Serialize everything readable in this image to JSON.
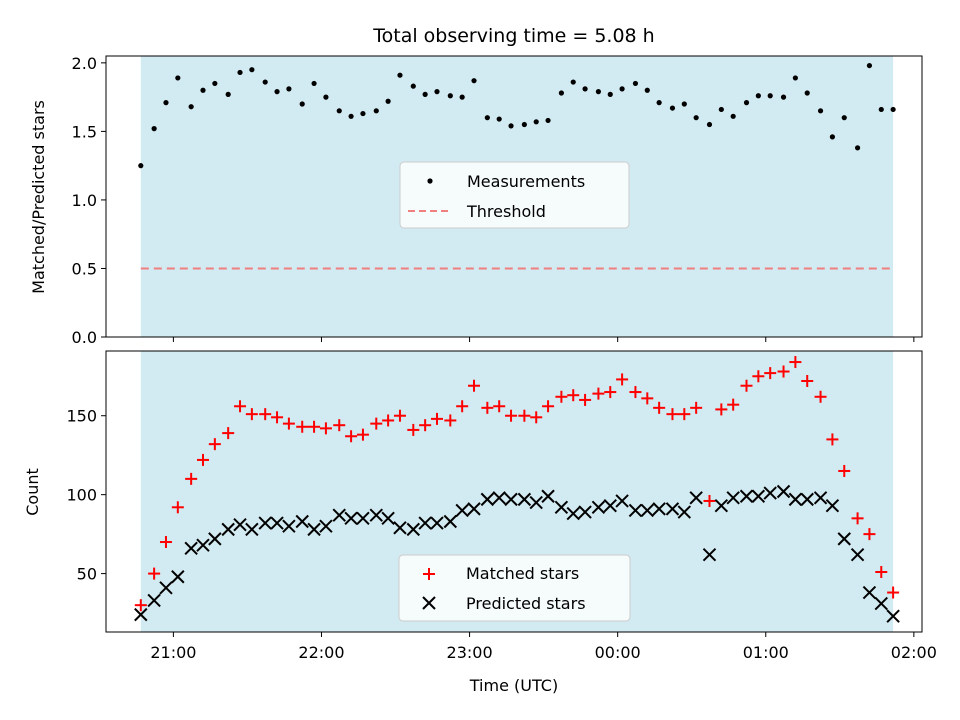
{
  "chart_data": [
    {
      "type": "scatter",
      "title": "Total observing time = 5.08 h",
      "xlabel": "",
      "ylabel": "Matched/Predicted stars",
      "xlim": [
        20.545,
        26.055
      ],
      "ylim": [
        0,
        2.05
      ],
      "yticks": [
        0.0,
        0.5,
        1.0,
        1.5,
        2.0
      ],
      "ytick_labels": [
        "0.0",
        "0.5",
        "1.0",
        "1.5",
        "2.0"
      ],
      "observing_span": [
        20.78,
        25.86
      ],
      "observing_color": "#add8e6",
      "legend": {
        "placement": "center",
        "entries": [
          "Measurements",
          "Threshold"
        ]
      },
      "threshold": {
        "name": "Threshold",
        "y": 0.5,
        "color": "#f08080",
        "style": "dashed"
      },
      "series": [
        {
          "name": "Measurements",
          "marker": "dot",
          "color": "#000000",
          "x": [
            20.78,
            20.87,
            20.95,
            21.03,
            21.12,
            21.2,
            21.28,
            21.37,
            21.45,
            21.53,
            21.62,
            21.7,
            21.78,
            21.87,
            21.95,
            22.03,
            22.12,
            22.2,
            22.28,
            22.37,
            22.45,
            22.53,
            22.62,
            22.7,
            22.78,
            22.87,
            22.95,
            23.03,
            23.12,
            23.2,
            23.28,
            23.37,
            23.45,
            23.53,
            23.62,
            23.7,
            23.78,
            23.87,
            23.95,
            24.03,
            24.12,
            24.2,
            24.28,
            24.37,
            24.45,
            24.53,
            24.62,
            24.7,
            24.78,
            24.87,
            24.95,
            25.03,
            25.12,
            25.2,
            25.28,
            25.37,
            25.45,
            25.53,
            25.62,
            25.7,
            25.78,
            25.86
          ],
          "y": [
            1.25,
            1.52,
            1.71,
            1.89,
            1.68,
            1.8,
            1.85,
            1.77,
            1.93,
            1.95,
            1.86,
            1.79,
            1.81,
            1.7,
            1.85,
            1.75,
            1.65,
            1.61,
            1.63,
            1.65,
            1.72,
            1.91,
            1.83,
            1.77,
            1.79,
            1.76,
            1.75,
            1.87,
            1.6,
            1.59,
            1.54,
            1.55,
            1.57,
            1.58,
            1.78,
            1.86,
            1.81,
            1.79,
            1.77,
            1.81,
            1.85,
            1.8,
            1.71,
            1.67,
            1.7,
            1.6,
            1.55,
            1.66,
            1.61,
            1.71,
            1.76,
            1.76,
            1.75,
            1.89,
            1.78,
            1.65,
            1.46,
            1.6,
            1.38,
            1.98,
            1.66,
            1.66
          ]
        }
      ]
    },
    {
      "type": "scatter",
      "title": "",
      "xlabel": "Time (UTC)",
      "ylabel": "Count",
      "xlim": [
        20.545,
        26.055
      ],
      "ylim": [
        13,
        191
      ],
      "yticks": [
        50,
        100,
        150
      ],
      "ytick_labels": [
        "50",
        "100",
        "150"
      ],
      "xticks": [
        21,
        22,
        23,
        24,
        25,
        26
      ],
      "xtick_labels": [
        "21:00",
        "22:00",
        "23:00",
        "00:00",
        "01:00",
        "02:00"
      ],
      "observing_span": [
        20.78,
        25.86
      ],
      "observing_color": "#add8e6",
      "legend": {
        "placement": "lower center",
        "entries": [
          "Matched stars",
          "Predicted stars"
        ]
      },
      "series": [
        {
          "name": "Matched stars",
          "marker": "plus",
          "color": "#ff0000",
          "x": [
            20.78,
            20.87,
            20.95,
            21.03,
            21.12,
            21.2,
            21.28,
            21.37,
            21.45,
            21.53,
            21.62,
            21.7,
            21.78,
            21.87,
            21.95,
            22.03,
            22.12,
            22.2,
            22.28,
            22.37,
            22.45,
            22.53,
            22.62,
            22.7,
            22.78,
            22.87,
            22.95,
            23.03,
            23.12,
            23.2,
            23.28,
            23.37,
            23.45,
            23.53,
            23.62,
            23.7,
            23.78,
            23.87,
            23.95,
            24.03,
            24.12,
            24.2,
            24.28,
            24.37,
            24.45,
            24.53,
            24.62,
            24.7,
            24.78,
            24.87,
            24.95,
            25.03,
            25.12,
            25.2,
            25.28,
            25.37,
            25.45,
            25.53,
            25.62,
            25.7,
            25.78,
            25.86
          ],
          "y": [
            30,
            50,
            70,
            92,
            110,
            122,
            132,
            139,
            156,
            151,
            151,
            149,
            145,
            143,
            143,
            142,
            144,
            137,
            138,
            145,
            147,
            150,
            141,
            144,
            148,
            147,
            156,
            169,
            155,
            156,
            150,
            150,
            149,
            156,
            162,
            163,
            160,
            164,
            165,
            173,
            165,
            161,
            155,
            151,
            151,
            155,
            96,
            154,
            157,
            169,
            175,
            177,
            178,
            184,
            172,
            162,
            135,
            115,
            85,
            75,
            51,
            38
          ]
        },
        {
          "name": "Predicted stars",
          "marker": "x",
          "color": "#000000",
          "x": [
            20.78,
            20.87,
            20.95,
            21.03,
            21.12,
            21.2,
            21.28,
            21.37,
            21.45,
            21.53,
            21.62,
            21.7,
            21.78,
            21.87,
            21.95,
            22.03,
            22.12,
            22.2,
            22.28,
            22.37,
            22.45,
            22.53,
            22.62,
            22.7,
            22.78,
            22.87,
            22.95,
            23.03,
            23.12,
            23.2,
            23.28,
            23.37,
            23.45,
            23.53,
            23.62,
            23.7,
            23.78,
            23.87,
            23.95,
            24.03,
            24.12,
            24.2,
            24.28,
            24.37,
            24.45,
            24.53,
            24.62,
            24.7,
            24.78,
            24.87,
            24.95,
            25.03,
            25.12,
            25.2,
            25.28,
            25.37,
            25.45,
            25.53,
            25.62,
            25.7,
            25.78,
            25.86
          ],
          "y": [
            24,
            33,
            41,
            48,
            66,
            68,
            72,
            78,
            81,
            78,
            82,
            82,
            80,
            83,
            78,
            80,
            87,
            85,
            85,
            87,
            85,
            79,
            78,
            82,
            82,
            83,
            90,
            91,
            97,
            98,
            97,
            97,
            95,
            99,
            92,
            88,
            89,
            92,
            93,
            96,
            90,
            90,
            91,
            91,
            89,
            98,
            62,
            93,
            98,
            99,
            99,
            101,
            102,
            97,
            97,
            98,
            93,
            72,
            62,
            38,
            31,
            23
          ]
        }
      ]
    }
  ]
}
